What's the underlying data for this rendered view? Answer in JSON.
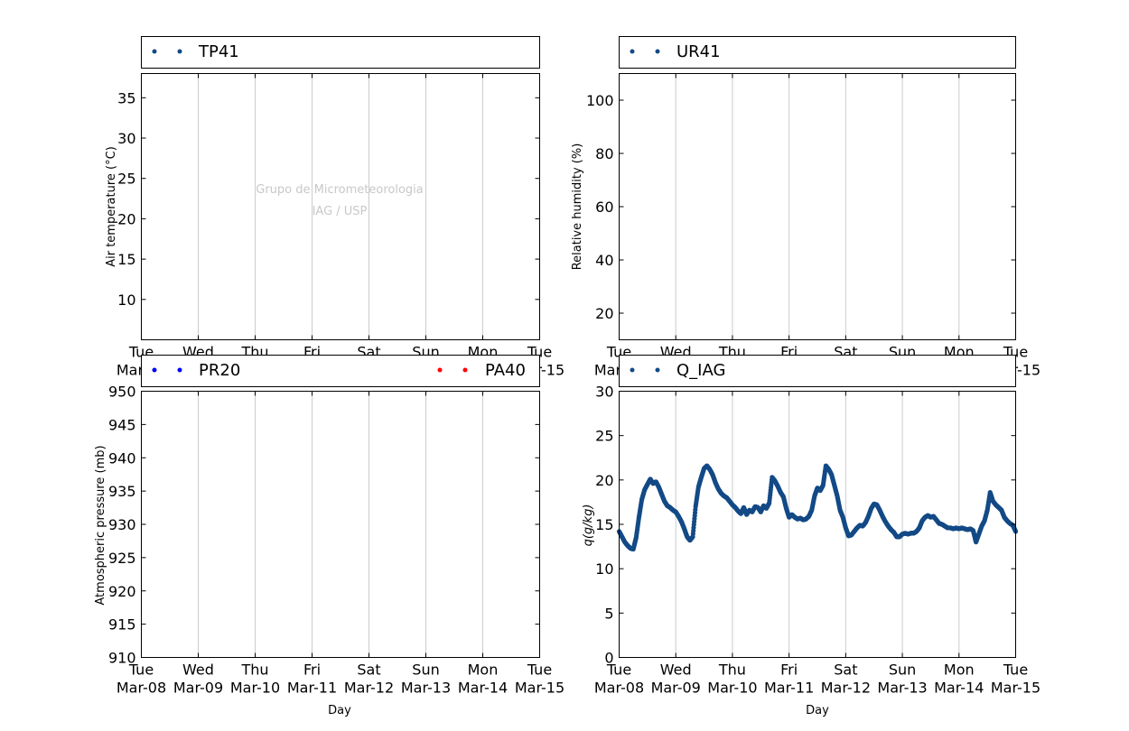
{
  "watermark": {
    "line1": "Grupo de Micrometeorologia",
    "line2": "IAG / USP"
  },
  "xaxis": {
    "label": "Day",
    "ticks": [
      {
        "date": "2016-03-08",
        "day": "Tue",
        "date_label": "Mar-08"
      },
      {
        "date": "2016-03-09",
        "day": "Wed",
        "date_label": "Mar-09"
      },
      {
        "date": "2016-03-10",
        "day": "Thu",
        "date_label": "Mar-10"
      },
      {
        "date": "2016-03-11",
        "day": "Fri",
        "date_label": "Mar-11"
      },
      {
        "date": "2016-03-12",
        "day": "Sat",
        "date_label": "Mar-12"
      },
      {
        "date": "2016-03-13",
        "day": "Sun",
        "date_label": "Mar-13"
      },
      {
        "date": "2016-03-14",
        "day": "Mon",
        "date_label": "Mar-14"
      },
      {
        "date": "2016-03-15",
        "day": "Tue",
        "date_label": "Mar-15"
      }
    ]
  },
  "chart_data": [
    {
      "type": "scatter",
      "panel": "top-left",
      "ylabel": "Air temperature (°C)",
      "ylim": [
        5,
        38
      ],
      "yticks": [
        10,
        15,
        20,
        25,
        30,
        35
      ],
      "xlim": [
        "2016-03-08",
        "2016-03-15"
      ],
      "grid": "vertical",
      "legend_position": "above",
      "series": [
        {
          "name": "TP41",
          "color": "#134a86",
          "points": []
        }
      ]
    },
    {
      "type": "scatter",
      "panel": "top-right",
      "ylabel": "Relative humidity (%)",
      "ylim": [
        10,
        110
      ],
      "yticks": [
        20,
        40,
        60,
        80,
        100
      ],
      "xlim": [
        "2016-03-08",
        "2016-03-15"
      ],
      "grid": "vertical",
      "legend_position": "above",
      "series": [
        {
          "name": "UR41",
          "color": "#134a86",
          "points": []
        }
      ]
    },
    {
      "type": "scatter",
      "panel": "bottom-left",
      "ylabel": "Atmospheric pressure (mb)",
      "ylim": [
        910,
        950
      ],
      "yticks": [
        910,
        915,
        920,
        925,
        930,
        935,
        940,
        945,
        950
      ],
      "xlim": [
        "2016-03-08",
        "2016-03-15"
      ],
      "grid": "vertical",
      "legend_position": "above",
      "series": [
        {
          "name": "PR20",
          "color": "#0000ff",
          "points": []
        },
        {
          "name": "PA40",
          "color": "#ff0000",
          "points": []
        }
      ]
    },
    {
      "type": "scatter",
      "panel": "bottom-right",
      "ylabel": "q(g/kg)",
      "ylim": [
        0,
        30
      ],
      "yticks": [
        0,
        5,
        10,
        15,
        20,
        25,
        30
      ],
      "xlim": [
        "2016-03-08",
        "2016-03-15"
      ],
      "grid": "vertical",
      "legend_position": "above",
      "series": [
        {
          "name": "Q_IAG",
          "color": "#134a86",
          "points": [
            [
              "2016-03-08T00:00",
              14.2
            ],
            [
              "2016-03-08T01:12",
              13.6
            ],
            [
              "2016-03-08T02:24",
              13.0
            ],
            [
              "2016-03-08T03:36",
              12.6
            ],
            [
              "2016-03-08T04:48",
              12.3
            ],
            [
              "2016-03-08T06:00",
              12.2
            ],
            [
              "2016-03-08T07:12",
              13.5
            ],
            [
              "2016-03-08T08:24",
              15.8
            ],
            [
              "2016-03-08T09:36",
              17.8
            ],
            [
              "2016-03-08T10:48",
              18.9
            ],
            [
              "2016-03-08T12:00",
              19.5
            ],
            [
              "2016-03-08T13:12",
              20.1
            ],
            [
              "2016-03-08T14:24",
              19.6
            ],
            [
              "2016-03-08T15:36",
              19.8
            ],
            [
              "2016-03-08T16:48",
              19.2
            ],
            [
              "2016-03-08T18:00",
              18.4
            ],
            [
              "2016-03-08T19:12",
              17.6
            ],
            [
              "2016-03-08T20:24",
              17.1
            ],
            [
              "2016-03-08T21:36",
              16.9
            ],
            [
              "2016-03-08T22:48",
              16.6
            ],
            [
              "2016-03-09T00:00",
              16.4
            ],
            [
              "2016-03-09T01:12",
              15.9
            ],
            [
              "2016-03-09T02:24",
              15.3
            ],
            [
              "2016-03-09T03:36",
              14.5
            ],
            [
              "2016-03-09T04:48",
              13.6
            ],
            [
              "2016-03-09T06:00",
              13.2
            ],
            [
              "2016-03-09T07:12",
              13.6
            ],
            [
              "2016-03-09T08:24",
              17.0
            ],
            [
              "2016-03-09T09:36",
              19.2
            ],
            [
              "2016-03-09T10:48",
              20.3
            ],
            [
              "2016-03-09T12:00",
              21.3
            ],
            [
              "2016-03-09T13:12",
              21.6
            ],
            [
              "2016-03-09T14:24",
              21.2
            ],
            [
              "2016-03-09T15:36",
              20.6
            ],
            [
              "2016-03-09T16:48",
              19.7
            ],
            [
              "2016-03-09T18:00",
              19.0
            ],
            [
              "2016-03-09T19:12",
              18.5
            ],
            [
              "2016-03-09T20:24",
              18.2
            ],
            [
              "2016-03-09T21:36",
              18.0
            ],
            [
              "2016-03-09T22:48",
              17.6
            ],
            [
              "2016-03-10T00:00",
              17.2
            ],
            [
              "2016-03-10T01:12",
              16.9
            ],
            [
              "2016-03-10T02:24",
              16.5
            ],
            [
              "2016-03-10T03:36",
              16.2
            ],
            [
              "2016-03-10T04:48",
              16.9
            ],
            [
              "2016-03-10T06:00",
              16.1
            ],
            [
              "2016-03-10T07:12",
              16.6
            ],
            [
              "2016-03-10T08:24",
              16.4
            ],
            [
              "2016-03-10T09:36",
              17.0
            ],
            [
              "2016-03-10T10:48",
              16.9
            ],
            [
              "2016-03-10T12:00",
              16.4
            ],
            [
              "2016-03-10T13:12",
              17.1
            ],
            [
              "2016-03-10T14:24",
              16.8
            ],
            [
              "2016-03-10T15:36",
              17.4
            ],
            [
              "2016-03-10T16:48",
              20.3
            ],
            [
              "2016-03-10T18:00",
              19.9
            ],
            [
              "2016-03-10T19:12",
              19.3
            ],
            [
              "2016-03-10T20:24",
              18.6
            ],
            [
              "2016-03-10T21:36",
              18.1
            ],
            [
              "2016-03-10T22:48",
              16.8
            ],
            [
              "2016-03-11T00:00",
              15.8
            ],
            [
              "2016-03-11T01:12",
              16.1
            ],
            [
              "2016-03-11T02:24",
              15.8
            ],
            [
              "2016-03-11T03:36",
              15.6
            ],
            [
              "2016-03-11T04:48",
              15.7
            ],
            [
              "2016-03-11T06:00",
              15.5
            ],
            [
              "2016-03-11T07:12",
              15.6
            ],
            [
              "2016-03-11T08:24",
              15.9
            ],
            [
              "2016-03-11T09:36",
              16.6
            ],
            [
              "2016-03-11T10:48",
              18.2
            ],
            [
              "2016-03-11T12:00",
              19.1
            ],
            [
              "2016-03-11T13:12",
              18.8
            ],
            [
              "2016-03-11T14:24",
              19.4
            ],
            [
              "2016-03-11T15:36",
              21.6
            ],
            [
              "2016-03-11T16:48",
              21.2
            ],
            [
              "2016-03-11T18:00",
              20.6
            ],
            [
              "2016-03-11T19:12",
              19.4
            ],
            [
              "2016-03-11T20:24",
              18.2
            ],
            [
              "2016-03-11T21:36",
              16.6
            ],
            [
              "2016-03-11T22:48",
              15.8
            ],
            [
              "2016-03-12T00:00",
              14.6
            ],
            [
              "2016-03-12T01:12",
              13.7
            ],
            [
              "2016-03-12T02:24",
              13.8
            ],
            [
              "2016-03-12T03:36",
              14.2
            ],
            [
              "2016-03-12T04:48",
              14.6
            ],
            [
              "2016-03-12T06:00",
              14.9
            ],
            [
              "2016-03-12T07:12",
              14.8
            ],
            [
              "2016-03-12T08:24",
              15.2
            ],
            [
              "2016-03-12T09:36",
              15.9
            ],
            [
              "2016-03-12T10:48",
              16.8
            ],
            [
              "2016-03-12T12:00",
              17.3
            ],
            [
              "2016-03-12T13:12",
              17.2
            ],
            [
              "2016-03-12T14:24",
              16.6
            ],
            [
              "2016-03-12T15:36",
              15.9
            ],
            [
              "2016-03-12T16:48",
              15.3
            ],
            [
              "2016-03-12T18:00",
              14.8
            ],
            [
              "2016-03-12T19:12",
              14.4
            ],
            [
              "2016-03-12T20:24",
              14.1
            ],
            [
              "2016-03-12T21:36",
              13.6
            ],
            [
              "2016-03-12T22:48",
              13.6
            ],
            [
              "2016-03-13T00:00",
              13.9
            ],
            [
              "2016-03-13T01:12",
              14.0
            ],
            [
              "2016-03-13T02:24",
              13.9
            ],
            [
              "2016-03-13T03:36",
              14.0
            ],
            [
              "2016-03-13T04:48",
              14.0
            ],
            [
              "2016-03-13T06:00",
              14.2
            ],
            [
              "2016-03-13T07:12",
              14.6
            ],
            [
              "2016-03-13T08:24",
              15.4
            ],
            [
              "2016-03-13T09:36",
              15.8
            ],
            [
              "2016-03-13T10:48",
              16.0
            ],
            [
              "2016-03-13T12:00",
              15.8
            ],
            [
              "2016-03-13T13:12",
              15.9
            ],
            [
              "2016-03-13T14:24",
              15.5
            ],
            [
              "2016-03-13T15:36",
              15.1
            ],
            [
              "2016-03-13T16:48",
              15.0
            ],
            [
              "2016-03-13T18:00",
              14.8
            ],
            [
              "2016-03-13T19:12",
              14.6
            ],
            [
              "2016-03-13T20:24",
              14.6
            ],
            [
              "2016-03-13T21:36",
              14.5
            ],
            [
              "2016-03-13T22:48",
              14.6
            ],
            [
              "2016-03-14T00:00",
              14.5
            ],
            [
              "2016-03-14T01:12",
              14.6
            ],
            [
              "2016-03-14T02:24",
              14.5
            ],
            [
              "2016-03-14T03:36",
              14.4
            ],
            [
              "2016-03-14T04:48",
              14.5
            ],
            [
              "2016-03-14T06:00",
              14.3
            ],
            [
              "2016-03-14T07:12",
              13.0
            ],
            [
              "2016-03-14T08:24",
              13.9
            ],
            [
              "2016-03-14T09:36",
              14.8
            ],
            [
              "2016-03-14T10:48",
              15.4
            ],
            [
              "2016-03-14T12:00",
              16.6
            ],
            [
              "2016-03-14T13:12",
              18.6
            ],
            [
              "2016-03-14T14:24",
              17.6
            ],
            [
              "2016-03-14T15:36",
              17.2
            ],
            [
              "2016-03-14T16:48",
              16.9
            ],
            [
              "2016-03-14T18:00",
              16.6
            ],
            [
              "2016-03-14T19:12",
              15.8
            ],
            [
              "2016-03-14T20:24",
              15.4
            ],
            [
              "2016-03-14T21:36",
              15.1
            ],
            [
              "2016-03-14T22:48",
              14.9
            ],
            [
              "2016-03-15T00:00",
              14.2
            ]
          ]
        }
      ]
    }
  ]
}
